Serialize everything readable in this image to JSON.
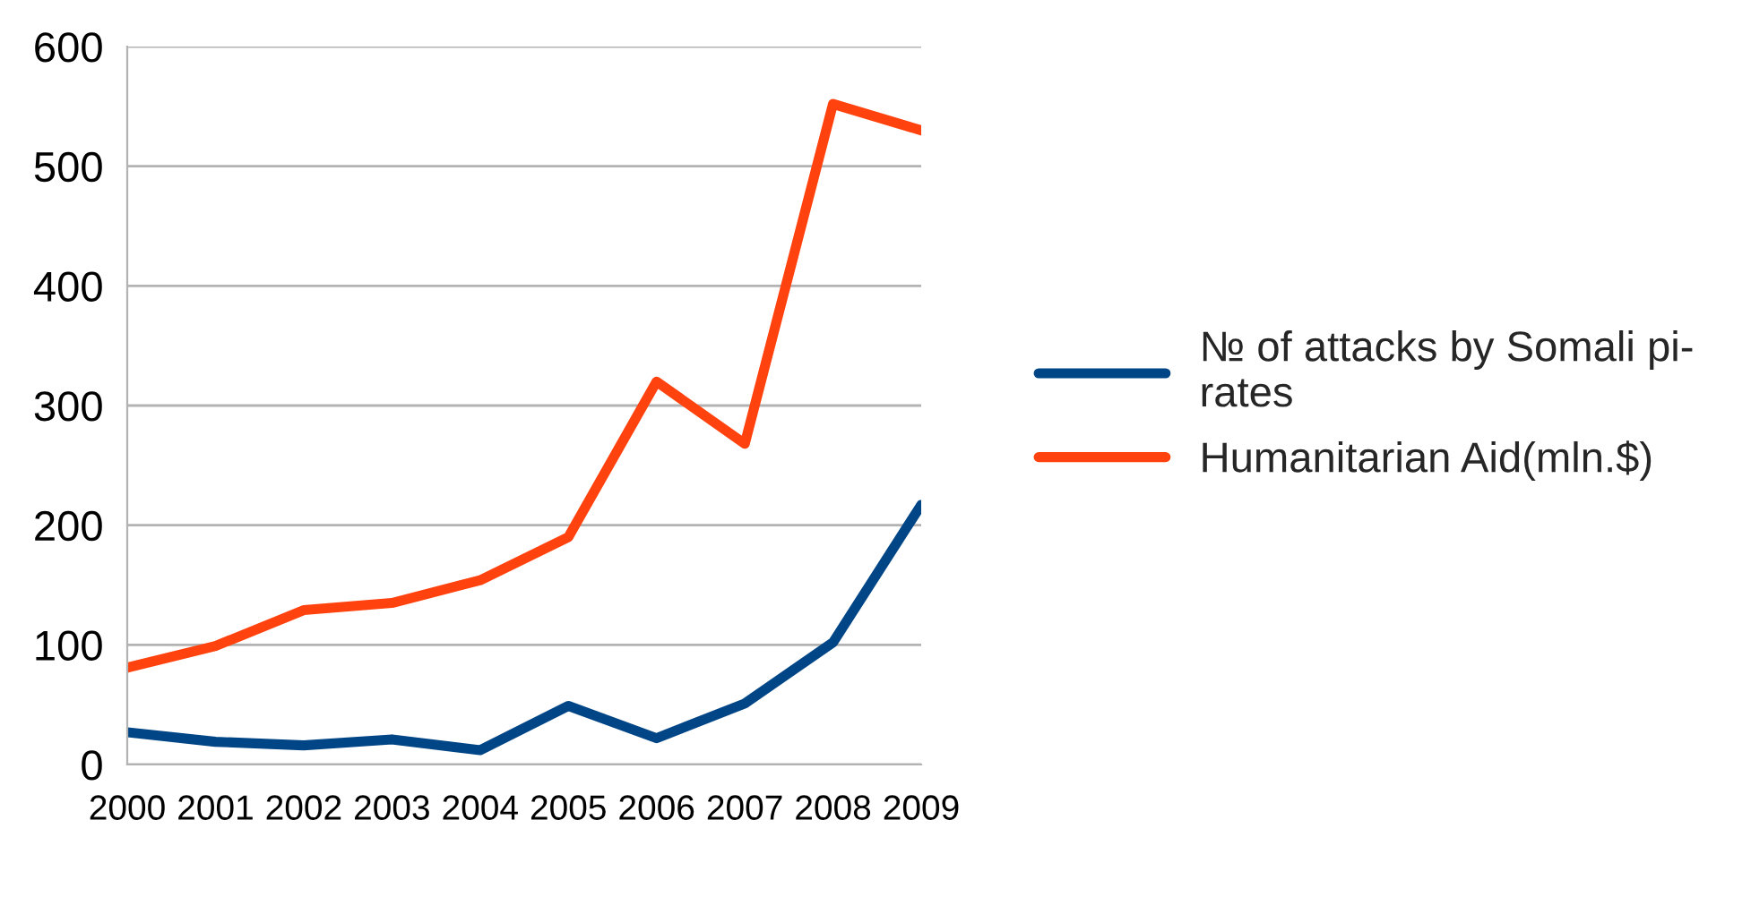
{
  "chart_data": {
    "type": "line",
    "x": [
      2000,
      2001,
      2002,
      2003,
      2004,
      2005,
      2006,
      2007,
      2008,
      2009
    ],
    "series": [
      {
        "name": "№ of attacks by Somali pi-\nrates",
        "color": "#004586",
        "values": [
          27,
          19,
          16,
          21,
          12,
          49,
          22,
          51,
          102,
          217
        ]
      },
      {
        "name": "Humanitarian Aid(mln.$)",
        "color": "#ff420e",
        "values": [
          81,
          99,
          129,
          135,
          154,
          190,
          320,
          268,
          552,
          530
        ]
      }
    ],
    "xlim": [
      2000,
      2009
    ],
    "xticks": [
      2000,
      2001,
      2002,
      2003,
      2004,
      2005,
      2006,
      2007,
      2008,
      2009
    ],
    "ylim": [
      0,
      600
    ],
    "yticks": [
      0,
      100,
      200,
      300,
      400,
      500,
      600
    ],
    "grid": "y",
    "legend": "right",
    "marker": "none",
    "line_style": "solid"
  }
}
